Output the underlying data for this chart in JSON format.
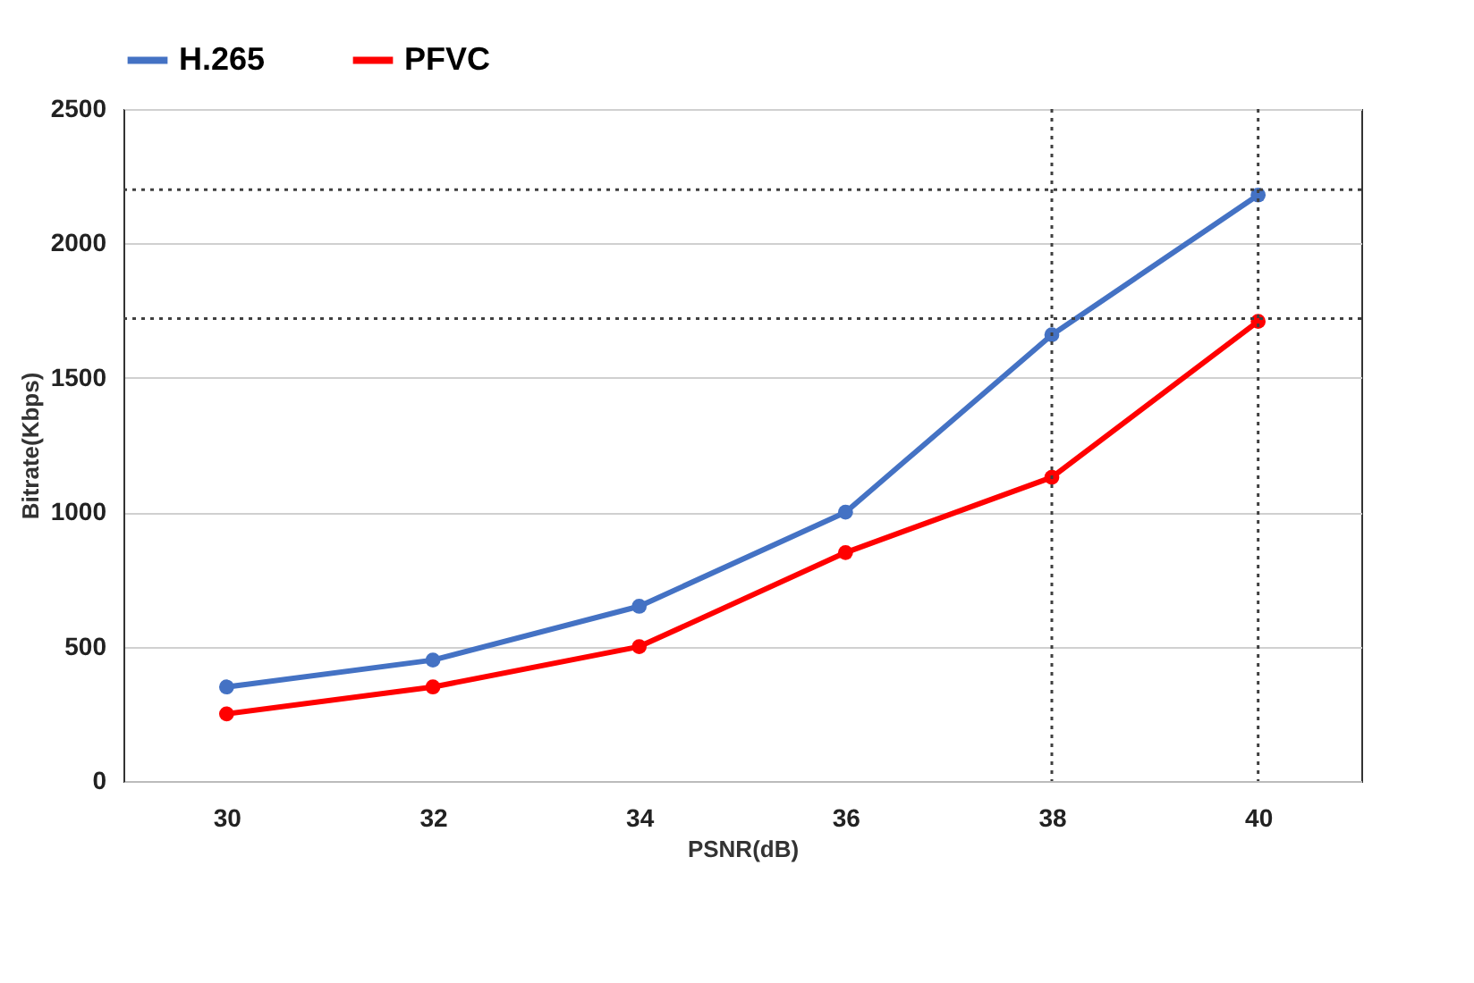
{
  "chart_data": {
    "type": "line",
    "xlabel": "PSNR(dB)",
    "ylabel": "Bitrate(Kbps)",
    "x": [
      30,
      32,
      34,
      36,
      38,
      40
    ],
    "series": [
      {
        "name": "H.265",
        "color": "#4472c4",
        "values": [
          350,
          450,
          650,
          1000,
          1660,
          2180
        ]
      },
      {
        "name": "PFVC",
        "color": "#ff0000",
        "values": [
          250,
          350,
          500,
          850,
          1130,
          1710
        ]
      }
    ],
    "xlim": [
      29,
      41
    ],
    "xticks": [
      30,
      32,
      34,
      36,
      38,
      40
    ],
    "ylim": [
      0,
      2500
    ],
    "yticks": [
      0,
      500,
      1000,
      1500,
      2000,
      2500
    ],
    "grid": "y",
    "legend": "top",
    "marker": "circle",
    "line_style": "solid",
    "ref_lines": [
      {
        "axis": "y",
        "value": 2200,
        "color": "#404040",
        "line_style": "dotted"
      },
      {
        "axis": "y",
        "value": 1720,
        "color": "#404040",
        "line_style": "dotted"
      },
      {
        "axis": "x",
        "value": 38,
        "color": "#404040",
        "line_style": "dotted"
      },
      {
        "axis": "x",
        "value": 40,
        "color": "#404040",
        "line_style": "dotted"
      }
    ]
  }
}
